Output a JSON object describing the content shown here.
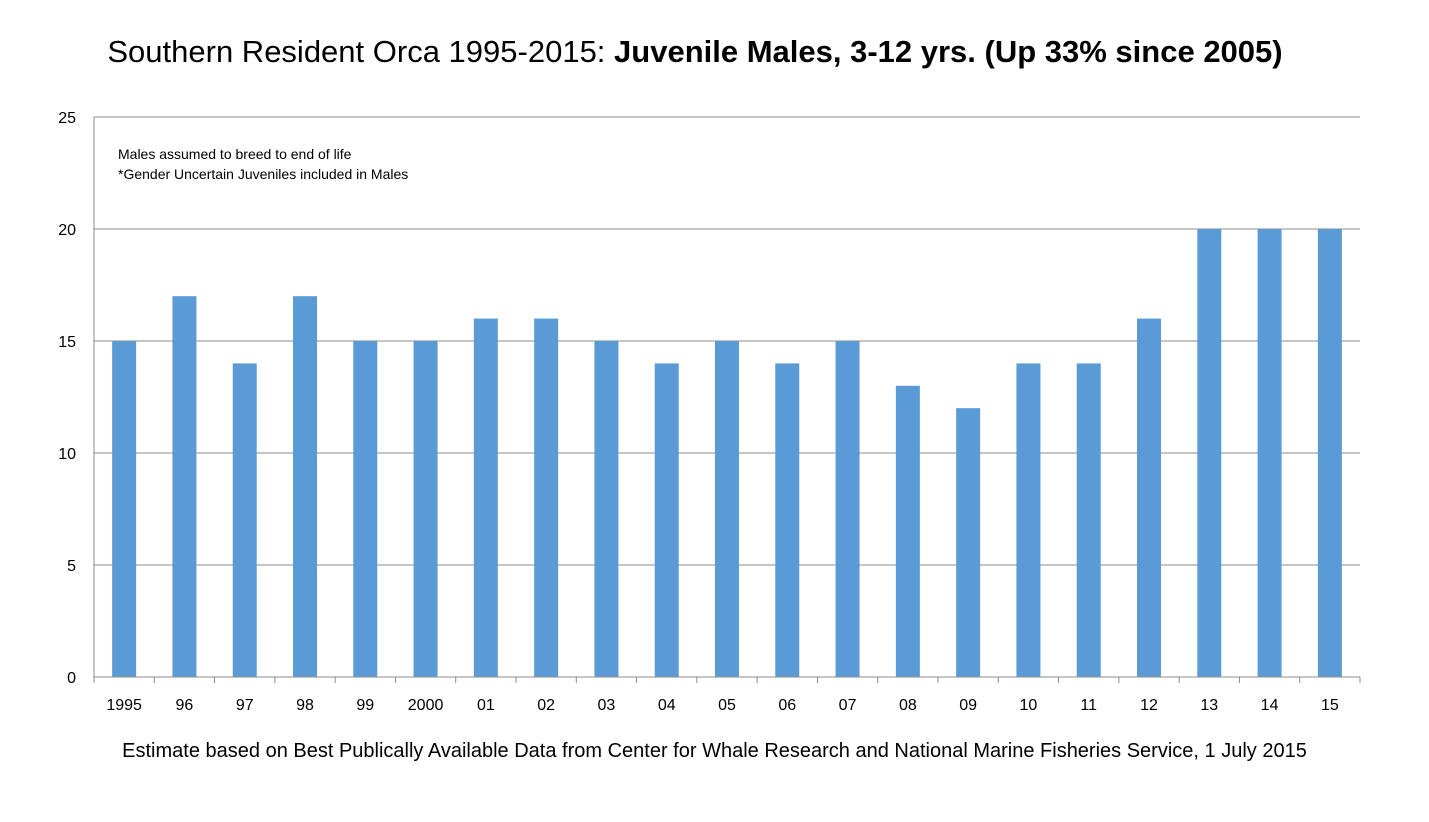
{
  "title": {
    "prefix": "Southern Resident Orca 1995-2015: ",
    "bold": "Juvenile Males, 3-12 yrs. (Up 33% since 2005)"
  },
  "source_note": "Estimate based on Best Publically Available Data from Center for Whale Research and National Marine Fisheries Service, 1 July 2015",
  "chart_data": {
    "type": "bar",
    "title": "Southern Resident Orca 1995-2015: Juvenile Males, 3-12 yrs. (Up 33% since 2005)",
    "categories": [
      "1995",
      "96",
      "97",
      "98",
      "99",
      "2000",
      "01",
      "02",
      "03",
      "04",
      "05",
      "06",
      "07",
      "08",
      "09",
      "10",
      "11",
      "12",
      "13",
      "14",
      "15"
    ],
    "values": [
      15,
      17,
      14,
      17,
      15,
      15,
      16,
      16,
      15,
      14,
      15,
      14,
      15,
      13,
      12,
      14,
      14,
      16,
      20,
      20,
      20
    ],
    "ylim": [
      0,
      25
    ],
    "yticks": [
      0,
      5,
      10,
      15,
      20,
      25
    ],
    "grid": true,
    "bar_color": "#5b9bd5",
    "annotations": [
      "Males assumed to breed to end of life",
      "*Gender Uncertain Juveniles included in Males"
    ]
  }
}
